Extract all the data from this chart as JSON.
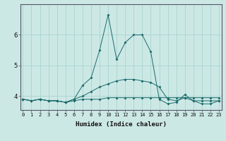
{
  "xlabel": "Humidex (Indice chaleur)",
  "background_color": "#cce8e5",
  "grid_color": "#a8d4d0",
  "line_color": "#1a6b6b",
  "x_values": [
    0,
    1,
    2,
    3,
    4,
    5,
    6,
    7,
    8,
    9,
    10,
    11,
    12,
    13,
    14,
    15,
    16,
    17,
    18,
    19,
    20,
    21,
    22,
    23
  ],
  "series": [
    [
      3.9,
      3.85,
      3.9,
      3.85,
      3.85,
      3.8,
      3.85,
      3.9,
      3.9,
      3.9,
      3.95,
      3.95,
      3.95,
      3.95,
      3.95,
      3.95,
      3.95,
      3.95,
      3.95,
      3.95,
      3.95,
      3.95,
      3.95,
      3.95
    ],
    [
      3.9,
      3.85,
      3.9,
      3.85,
      3.85,
      3.8,
      3.9,
      4.0,
      4.15,
      4.3,
      4.4,
      4.5,
      4.55,
      4.55,
      4.5,
      4.45,
      4.3,
      3.9,
      3.85,
      3.95,
      3.85,
      3.85,
      3.85,
      3.85
    ],
    [
      3.9,
      3.85,
      3.9,
      3.85,
      3.85,
      3.8,
      3.9,
      4.35,
      4.6,
      5.5,
      6.65,
      5.2,
      5.75,
      6.0,
      6.0,
      5.45,
      3.9,
      3.75,
      3.8,
      4.05,
      3.85,
      3.75,
      3.75,
      3.85
    ]
  ],
  "ylim": [
    3.55,
    7.0
  ],
  "yticks": [
    4,
    5,
    6
  ],
  "xticks": [
    0,
    1,
    2,
    3,
    4,
    5,
    6,
    7,
    8,
    9,
    10,
    11,
    12,
    13,
    14,
    15,
    16,
    17,
    18,
    19,
    20,
    21,
    22,
    23
  ],
  "xlabel_fontsize": 6.5,
  "tick_fontsize_x": 5.0,
  "tick_fontsize_y": 6.5
}
